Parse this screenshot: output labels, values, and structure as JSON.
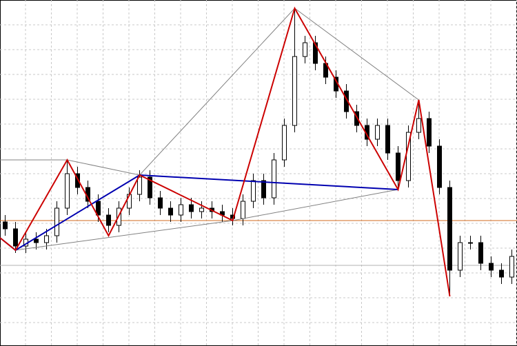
{
  "chart_data": {
    "type": "candlestick",
    "xlim": [
      -0.5,
      49.5
    ],
    "ylim": [
      0,
      502
    ],
    "grid": true,
    "open": [
      180,
      170,
      145,
      155,
      150,
      160,
      200,
      250,
      230,
      210,
      190,
      175,
      200,
      220,
      245,
      215,
      200,
      190,
      205,
      195,
      200,
      195,
      190,
      185,
      210,
      240,
      215,
      270,
      320,
      420,
      440,
      410,
      390,
      370,
      340,
      320,
      300,
      320,
      280,
      240,
      310,
      330,
      290,
      230,
      110,
      150,
      150,
      120,
      110,
      100
    ],
    "high": [
      190,
      180,
      165,
      165,
      170,
      210,
      270,
      260,
      240,
      220,
      200,
      210,
      230,
      255,
      255,
      225,
      210,
      215,
      215,
      210,
      210,
      205,
      200,
      220,
      250,
      250,
      280,
      330,
      490,
      450,
      450,
      420,
      400,
      380,
      350,
      330,
      330,
      330,
      290,
      320,
      357,
      340,
      300,
      240,
      160,
      160,
      160,
      130,
      120,
      140
    ],
    "low": [
      160,
      135,
      135,
      140,
      140,
      150,
      190,
      220,
      200,
      180,
      165,
      165,
      190,
      210,
      205,
      190,
      180,
      180,
      185,
      185,
      185,
      180,
      175,
      175,
      200,
      205,
      205,
      260,
      310,
      410,
      400,
      380,
      360,
      330,
      310,
      290,
      290,
      270,
      227,
      230,
      300,
      280,
      220,
      72,
      100,
      140,
      110,
      100,
      90,
      90
    ],
    "close": [
      170,
      145,
      155,
      150,
      160,
      200,
      250,
      230,
      210,
      190,
      175,
      200,
      220,
      245,
      215,
      200,
      190,
      205,
      195,
      200,
      195,
      190,
      185,
      210,
      240,
      215,
      270,
      320,
      420,
      440,
      410,
      390,
      370,
      340,
      320,
      300,
      320,
      280,
      240,
      310,
      330,
      290,
      230,
      110,
      150,
      150,
      120,
      110,
      100,
      130
    ],
    "up_color": "#ffffff",
    "down_color": "#000000",
    "lines": [
      {
        "color": "#808080",
        "x": [
          -0.5,
          6,
          13,
          28,
          40,
          43
        ],
        "values": [
          270,
          270,
          248,
          490,
          357,
          72
        ]
      },
      {
        "color": "#808080",
        "x": [
          1,
          22,
          38
        ],
        "values": [
          139,
          182,
          227
        ]
      },
      {
        "color": "#0000b0",
        "x": [
          -0.5,
          1,
          13,
          38
        ],
        "values": [
          157,
          139,
          248,
          227
        ]
      },
      {
        "color": "#cc0000",
        "x": [
          -0.5,
          1,
          6,
          10,
          13,
          22,
          28,
          38,
          40,
          43
        ],
        "values": [
          157,
          139,
          270,
          160,
          248,
          182,
          490,
          227,
          357,
          72
        ]
      }
    ],
    "hlines": [
      {
        "value": 182,
        "color": "#d2691e"
      },
      {
        "value": 117,
        "color": "#b0b0b0"
      }
    ]
  }
}
